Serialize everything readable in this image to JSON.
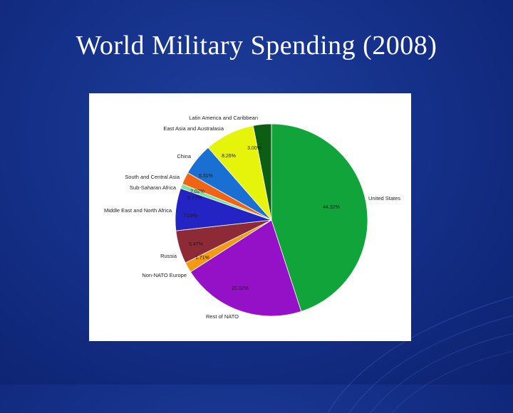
{
  "slide": {
    "title": "World Military Spending (2008)"
  },
  "colors": {
    "background": "#15318a",
    "title_text": "#ffffff",
    "panel": "#ffffff"
  },
  "chart_data": {
    "type": "pie",
    "start_angle_deg": 0,
    "direction": "clockwise",
    "slices": [
      {
        "label": "United States",
        "value": 44.32,
        "value_label": "44.32%",
        "color": "#11a43a"
      },
      {
        "label": "Rest of NATO",
        "value": 20.62,
        "value_label": "20.62%",
        "color": "#9411c8"
      },
      {
        "label": "Non-NATO Europe",
        "value": 1.71,
        "value_label": "1.71%",
        "color": "#f59a12"
      },
      {
        "label": "Russia",
        "value": 5.47,
        "value_label": "5.47%",
        "color": "#8e2a36"
      },
      {
        "label": "Middle East and North Africa",
        "value": 7.03,
        "value_label": "7.03%",
        "color": "#2424c4"
      },
      {
        "label": "Sub-Saharan Africa",
        "value": 0.77,
        "value_label": "0.77%",
        "color": "#7ce3a2"
      },
      {
        "label": "South and Central Asia",
        "value": 2.02,
        "value_label": "2.02%",
        "color": "#f06416"
      },
      {
        "label": "China",
        "value": 5.31,
        "value_label": "5.31%",
        "color": "#1a6fd2"
      },
      {
        "label": "East Asia and Australasia",
        "value": 8.26,
        "value_label": "8.26%",
        "color": "#e6f40c"
      },
      {
        "label": "Latin America and Caribbean",
        "value": 3.0,
        "value_label": "3.00%",
        "color": "#0c5e14"
      }
    ]
  }
}
